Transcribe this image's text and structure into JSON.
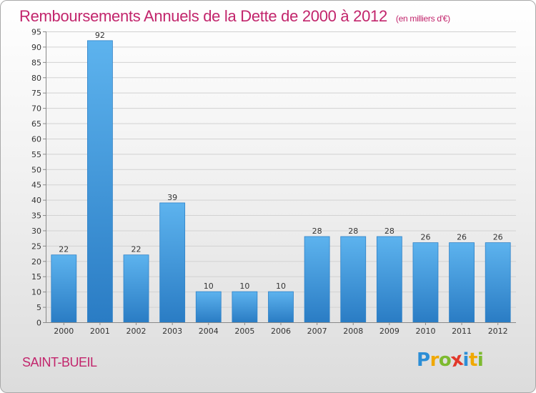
{
  "header": {
    "title": "Remboursements Annuels de la Dette de 2000 à 2012",
    "unit": "(en milliers d'€)"
  },
  "footer": {
    "commune": "SAINT-BUEIL",
    "logo": {
      "letters": [
        "P",
        "r",
        "o",
        "x",
        "i",
        "t",
        "i"
      ],
      "colors": [
        "#2c8ed6",
        "#f0a800",
        "#7dba2f",
        "#e2382a",
        "#2c8ed6",
        "#f0a800",
        "#7dba2f"
      ]
    }
  },
  "chart_data": {
    "type": "bar",
    "title": "Remboursements Annuels de la Dette de 2000 à 2012",
    "categories": [
      "2000",
      "2001",
      "2002",
      "2003",
      "2004",
      "2005",
      "2006",
      "2007",
      "2008",
      "2009",
      "2010",
      "2011",
      "2012"
    ],
    "values": [
      22,
      92,
      22,
      39,
      10,
      10,
      10,
      28,
      28,
      28,
      26,
      26,
      26
    ],
    "ylim": [
      0,
      95
    ],
    "yticks": [
      0,
      5,
      10,
      15,
      20,
      25,
      30,
      35,
      40,
      45,
      50,
      55,
      60,
      65,
      70,
      75,
      80,
      85,
      90,
      95
    ],
    "grid": true,
    "bar_color": "#4a9fe0"
  }
}
